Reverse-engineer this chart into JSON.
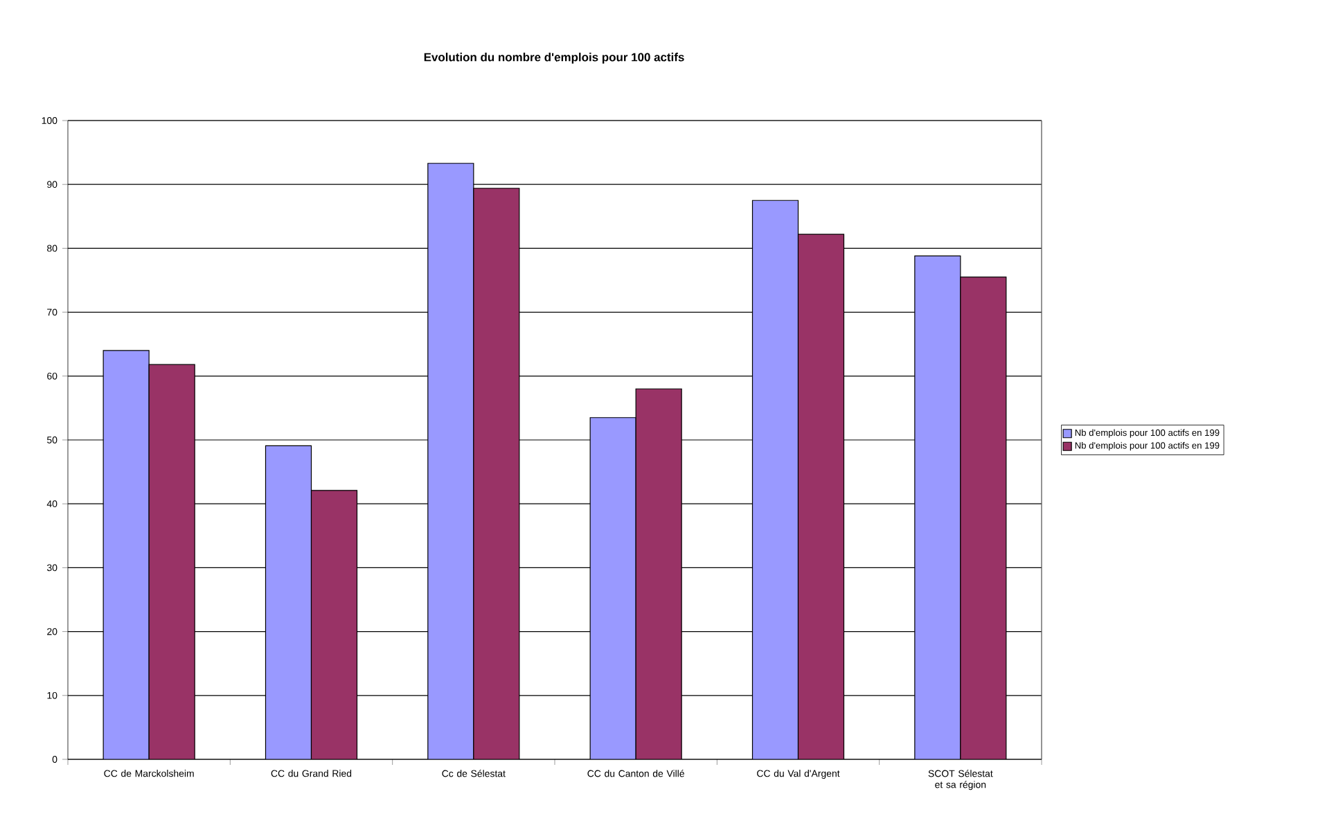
{
  "chart_data": {
    "type": "bar",
    "title": "Evolution du nombre d'emplois pour 100 actifs",
    "categories": [
      "CC de Marckolsheim",
      "CC du Grand Ried",
      "Cc de Sélestat",
      "CC du Canton de Villé",
      "CC du Val d'Argent",
      "SCOT Sélestat et sa région"
    ],
    "series": [
      {
        "name": "Nb d'emplois pour 100 actifs en 199",
        "color": "#9999ff",
        "values": [
          64.0,
          49.1,
          93.3,
          53.5,
          87.5,
          78.8
        ]
      },
      {
        "name": "Nb d'emplois pour 100 actifs en 199",
        "color": "#993366",
        "values": [
          61.8,
          42.1,
          89.4,
          58.0,
          82.2,
          75.5
        ]
      }
    ],
    "ylim": [
      0,
      100
    ],
    "yticks": [
      0,
      10,
      20,
      30,
      40,
      50,
      60,
      70,
      80,
      90,
      100
    ],
    "grid": "y",
    "legend": "right"
  }
}
